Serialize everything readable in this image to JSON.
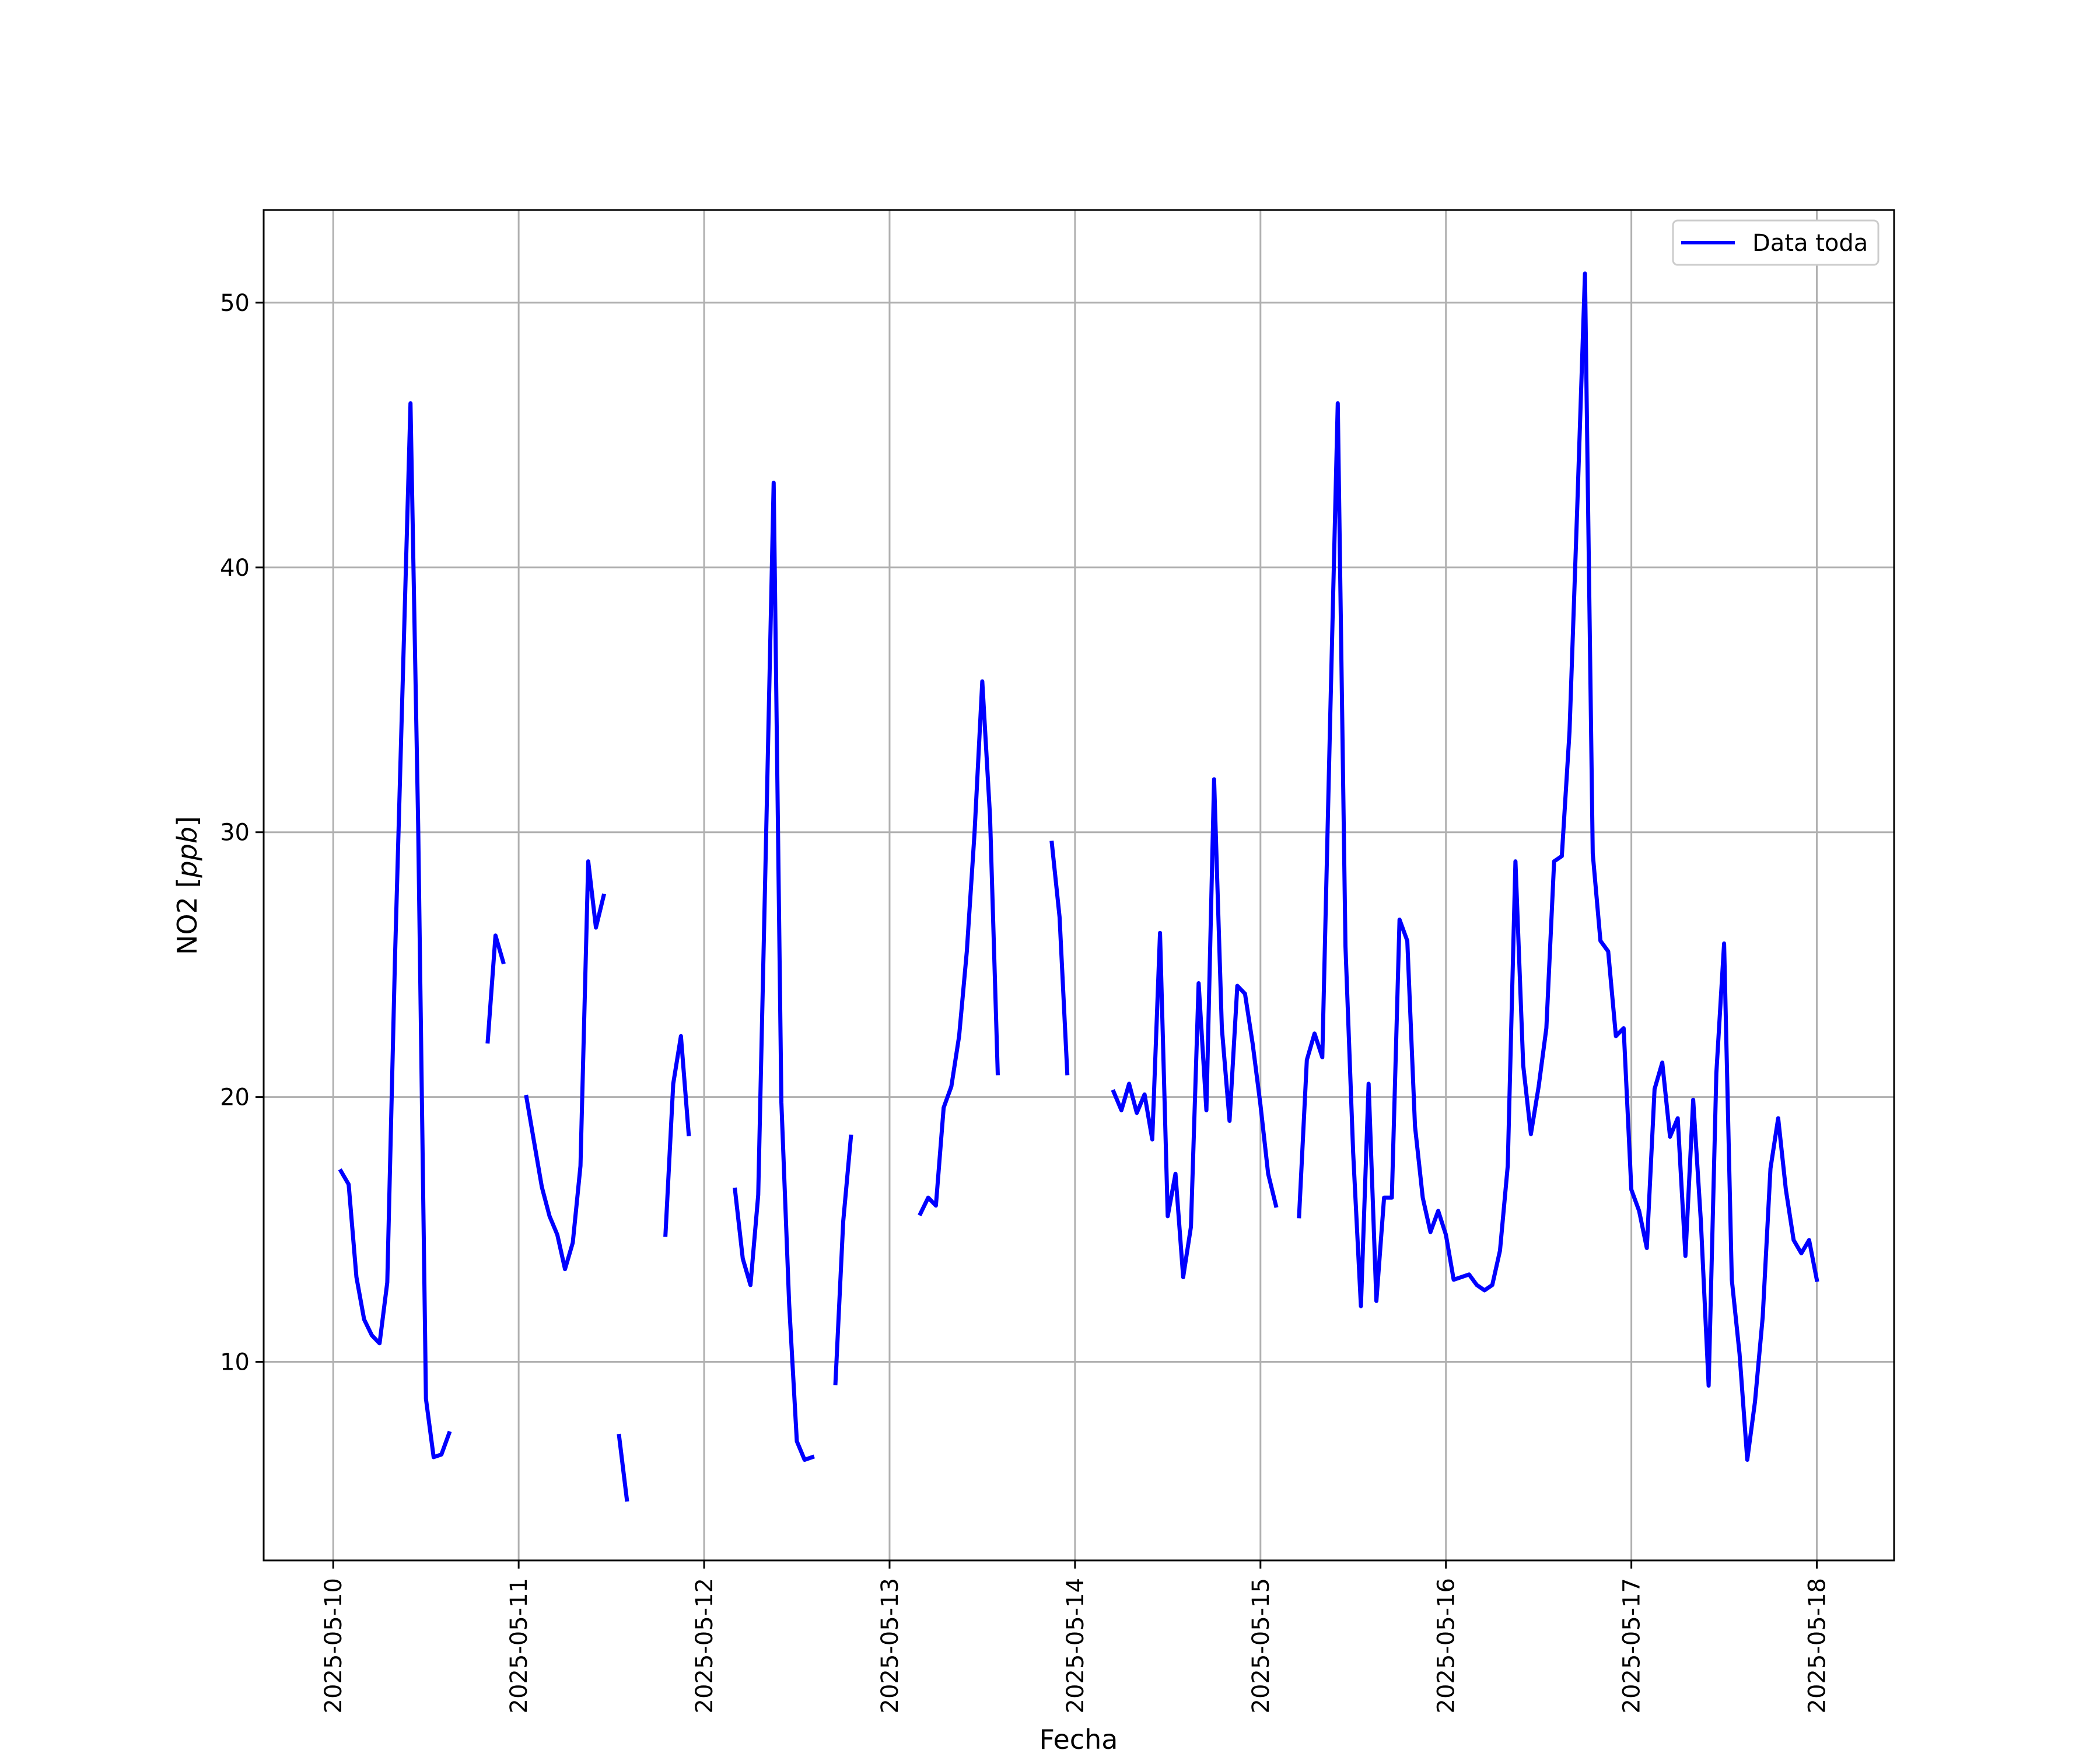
{
  "chart_data": {
    "type": "line",
    "title": "",
    "xlabel": "Fecha",
    "ylabel": "NO2 [ppb]",
    "ylabel_main": "NO2 [",
    "ylabel_unit": "ppb",
    "ylabel_close": "]",
    "x_tick_labels": [
      "2025-05-10",
      "2025-05-11",
      "2025-05-12",
      "2025-05-13",
      "2025-05-14",
      "2025-05-15",
      "2025-05-16",
      "2025-05-17",
      "2025-05-18"
    ],
    "y_tick_labels": [
      "10",
      "20",
      "30",
      "40",
      "50"
    ],
    "xlim": [
      "2025-05-09 15:00",
      "2025-05-18 10:00"
    ],
    "ylim": [
      2.5,
      53.5
    ],
    "grid": true,
    "legend_position": "top-right",
    "series": [
      {
        "name": "Data toda",
        "color": "#0000ff",
        "segments": [
          [
            [
              "2025-05-10 01:00",
              17.2
            ],
            [
              "2025-05-10 02:00",
              16.7
            ],
            [
              "2025-05-10 03:00",
              13.2
            ],
            [
              "2025-05-10 04:00",
              11.6
            ],
            [
              "2025-05-10 05:00",
              11.0
            ],
            [
              "2025-05-10 06:00",
              10.7
            ],
            [
              "2025-05-10 07:00",
              13.0
            ],
            [
              "2025-05-10 08:00",
              25.3
            ],
            [
              "2025-05-10 09:00",
              35.7
            ],
            [
              "2025-05-10 10:00",
              46.2
            ],
            [
              "2025-05-10 11:00",
              30.2
            ],
            [
              "2025-05-10 12:00",
              8.6
            ],
            [
              "2025-05-10 13:00",
              6.4
            ],
            [
              "2025-05-10 14:00",
              6.5
            ],
            [
              "2025-05-10 15:00",
              7.3
            ]
          ],
          [
            [
              "2025-05-10 20:00",
              22.1
            ],
            [
              "2025-05-10 21:00",
              26.1
            ],
            [
              "2025-05-10 22:00",
              25.1
            ]
          ],
          [
            [
              "2025-05-11 01:00",
              20.0
            ],
            [
              "2025-05-11 02:00",
              18.3
            ],
            [
              "2025-05-11 03:00",
              16.6
            ],
            [
              "2025-05-11 04:00",
              15.5
            ],
            [
              "2025-05-11 05:00",
              14.8
            ],
            [
              "2025-05-11 06:00",
              13.5
            ],
            [
              "2025-05-11 07:00",
              14.5
            ],
            [
              "2025-05-11 08:00",
              17.4
            ],
            [
              "2025-05-11 09:00",
              28.9
            ],
            [
              "2025-05-11 10:00",
              26.4
            ],
            [
              "2025-05-11 11:00",
              27.6
            ]
          ],
          [
            [
              "2025-05-11 13:00",
              7.2
            ],
            [
              "2025-05-11 14:00",
              4.8
            ]
          ],
          [
            [
              "2025-05-11 19:00",
              14.8
            ],
            [
              "2025-05-11 20:00",
              20.5
            ],
            [
              "2025-05-11 21:00",
              22.3
            ],
            [
              "2025-05-11 22:00",
              18.6
            ]
          ],
          [
            [
              "2025-05-12 04:00",
              16.5
            ],
            [
              "2025-05-12 05:00",
              13.9
            ],
            [
              "2025-05-12 06:00",
              12.9
            ],
            [
              "2025-05-12 07:00",
              16.3
            ],
            [
              "2025-05-12 08:00",
              29.5
            ],
            [
              "2025-05-12 09:00",
              43.2
            ],
            [
              "2025-05-12 10:00",
              19.8
            ],
            [
              "2025-05-12 11:00",
              12.2
            ],
            [
              "2025-05-12 12:00",
              7.0
            ],
            [
              "2025-05-12 13:00",
              6.3
            ],
            [
              "2025-05-12 14:00",
              6.4
            ]
          ],
          [
            [
              "2025-05-12 17:00",
              9.2
            ],
            [
              "2025-05-12 18:00",
              15.3
            ],
            [
              "2025-05-12 19:00",
              18.5
            ]
          ],
          [
            [
              "2025-05-13 04:00",
              15.6
            ],
            [
              "2025-05-13 05:00",
              16.2
            ],
            [
              "2025-05-13 06:00",
              15.9
            ],
            [
              "2025-05-13 07:00",
              19.6
            ],
            [
              "2025-05-13 08:00",
              20.4
            ],
            [
              "2025-05-13 09:00",
              22.3
            ],
            [
              "2025-05-13 10:00",
              25.5
            ],
            [
              "2025-05-13 11:00",
              30.0
            ],
            [
              "2025-05-13 12:00",
              35.7
            ],
            [
              "2025-05-13 13:00",
              30.6
            ],
            [
              "2025-05-13 14:00",
              20.9
            ]
          ],
          [
            [
              "2025-05-13 21:00",
              29.6
            ],
            [
              "2025-05-13 22:00",
              26.8
            ],
            [
              "2025-05-13 23:00",
              20.9
            ]
          ],
          [
            [
              "2025-05-14 05:00",
              20.2
            ],
            [
              "2025-05-14 06:00",
              19.5
            ],
            [
              "2025-05-14 07:00",
              20.5
            ],
            [
              "2025-05-14 08:00",
              19.4
            ],
            [
              "2025-05-14 09:00",
              20.1
            ],
            [
              "2025-05-14 10:00",
              18.4
            ],
            [
              "2025-05-14 11:00",
              26.2
            ],
            [
              "2025-05-14 12:00",
              15.5
            ],
            [
              "2025-05-14 13:00",
              17.1
            ],
            [
              "2025-05-14 14:00",
              13.2
            ],
            [
              "2025-05-14 15:00",
              15.1
            ],
            [
              "2025-05-14 16:00",
              24.3
            ],
            [
              "2025-05-14 17:00",
              19.5
            ],
            [
              "2025-05-14 18:00",
              32.0
            ],
            [
              "2025-05-14 19:00",
              22.6
            ],
            [
              "2025-05-14 20:00",
              19.1
            ],
            [
              "2025-05-14 21:00",
              24.2
            ],
            [
              "2025-05-14 22:00",
              23.9
            ],
            [
              "2025-05-14 23:00",
              22.0
            ],
            [
              "2025-05-15 00:00",
              19.7
            ],
            [
              "2025-05-15 01:00",
              17.1
            ],
            [
              "2025-05-15 02:00",
              15.9
            ]
          ],
          [
            [
              "2025-05-15 05:00",
              15.5
            ],
            [
              "2025-05-15 06:00",
              21.4
            ],
            [
              "2025-05-15 07:00",
              22.4
            ],
            [
              "2025-05-15 08:00",
              21.5
            ],
            [
              "2025-05-15 09:00",
              34.0
            ],
            [
              "2025-05-15 10:00",
              46.2
            ],
            [
              "2025-05-15 11:00",
              25.7
            ],
            [
              "2025-05-15 12:00",
              17.9
            ],
            [
              "2025-05-15 13:00",
              12.1
            ],
            [
              "2025-05-15 14:00",
              20.5
            ],
            [
              "2025-05-15 15:00",
              12.3
            ],
            [
              "2025-05-15 16:00",
              16.2
            ],
            [
              "2025-05-15 17:00",
              16.2
            ],
            [
              "2025-05-15 18:00",
              26.7
            ],
            [
              "2025-05-15 19:00",
              25.9
            ],
            [
              "2025-05-15 20:00",
              18.9
            ],
            [
              "2025-05-15 21:00",
              16.2
            ],
            [
              "2025-05-15 22:00",
              14.9
            ],
            [
              "2025-05-15 23:00",
              15.7
            ],
            [
              "2025-05-16 00:00",
              14.8
            ],
            [
              "2025-05-16 01:00",
              13.1
            ],
            [
              "2025-05-16 02:00",
              13.2
            ],
            [
              "2025-05-16 03:00",
              13.3
            ],
            [
              "2025-05-16 04:00",
              12.9
            ],
            [
              "2025-05-16 05:00",
              12.7
            ],
            [
              "2025-05-16 06:00",
              12.9
            ],
            [
              "2025-05-16 07:00",
              14.2
            ],
            [
              "2025-05-16 08:00",
              17.4
            ],
            [
              "2025-05-16 09:00",
              28.9
            ],
            [
              "2025-05-16 10:00",
              21.2
            ],
            [
              "2025-05-16 11:00",
              18.6
            ],
            [
              "2025-05-16 12:00",
              20.4
            ],
            [
              "2025-05-16 13:00",
              22.6
            ],
            [
              "2025-05-16 14:00",
              28.9
            ],
            [
              "2025-05-16 15:00",
              29.1
            ],
            [
              "2025-05-16 16:00",
              33.8
            ],
            [
              "2025-05-16 17:00",
              42.3
            ],
            [
              "2025-05-16 18:00",
              51.1
            ],
            [
              "2025-05-16 19:00",
              29.2
            ],
            [
              "2025-05-16 20:00",
              25.9
            ],
            [
              "2025-05-16 21:00",
              25.5
            ],
            [
              "2025-05-16 22:00",
              22.3
            ],
            [
              "2025-05-16 23:00",
              22.6
            ],
            [
              "2025-05-17 00:00",
              16.5
            ],
            [
              "2025-05-17 01:00",
              15.7
            ],
            [
              "2025-05-17 02:00",
              14.3
            ],
            [
              "2025-05-17 03:00",
              20.3
            ],
            [
              "2025-05-17 04:00",
              21.3
            ],
            [
              "2025-05-17 05:00",
              18.5
            ],
            [
              "2025-05-17 06:00",
              19.2
            ],
            [
              "2025-05-17 07:00",
              14.0
            ],
            [
              "2025-05-17 08:00",
              19.9
            ],
            [
              "2025-05-17 09:00",
              15.3
            ],
            [
              "2025-05-17 10:00",
              9.1
            ],
            [
              "2025-05-17 11:00",
              20.9
            ],
            [
              "2025-05-17 12:00",
              25.8
            ],
            [
              "2025-05-17 13:00",
              13.1
            ],
            [
              "2025-05-17 14:00",
              10.3
            ],
            [
              "2025-05-17 15:00",
              6.3
            ],
            [
              "2025-05-17 16:00",
              8.5
            ],
            [
              "2025-05-17 17:00",
              11.7
            ],
            [
              "2025-05-17 18:00",
              17.3
            ],
            [
              "2025-05-17 19:00",
              19.2
            ],
            [
              "2025-05-17 20:00",
              16.5
            ],
            [
              "2025-05-17 21:00",
              14.6
            ],
            [
              "2025-05-17 22:00",
              14.1
            ],
            [
              "2025-05-17 23:00",
              14.6
            ],
            [
              "2025-05-18 00:00",
              13.1
            ]
          ]
        ]
      }
    ]
  }
}
